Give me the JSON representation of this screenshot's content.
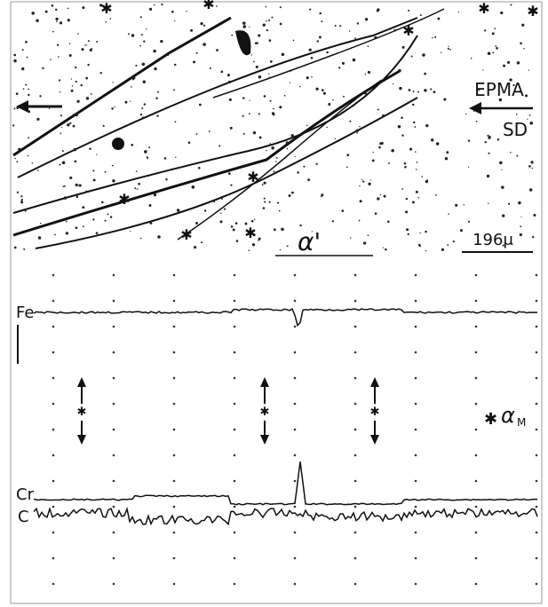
{
  "figure": {
    "micrograph": {
      "direction_label": "EPMA",
      "direction_sublabel": "SD",
      "phase_label": "α'",
      "scale_label": "196μ"
    },
    "traces": {
      "fe_label": "Fe",
      "cr_label": "Cr",
      "c_label": "C",
      "marker_label": {
        "symbol": "✱",
        "letter": "α",
        "subscript": "M"
      }
    }
  }
}
